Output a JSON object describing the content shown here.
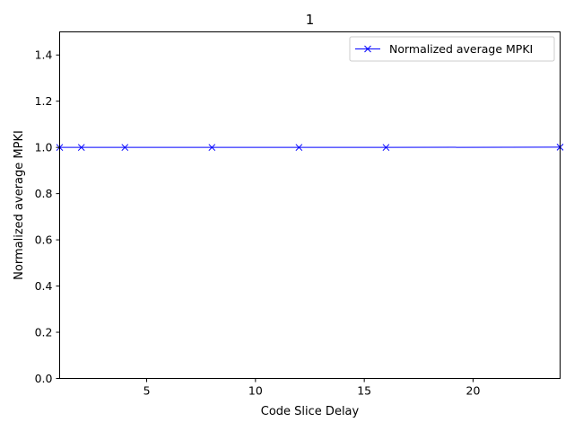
{
  "chart_data": {
    "type": "line",
    "title": "1",
    "xlabel": "Code Slice Delay",
    "ylabel": "Normalized average MPKI",
    "xlim": [
      1,
      24
    ],
    "ylim": [
      0.0,
      1.5
    ],
    "xticks": [
      5,
      10,
      15,
      20
    ],
    "yticks": [
      0.0,
      0.2,
      0.4,
      0.6,
      0.8,
      1.0,
      1.2,
      1.4
    ],
    "ytick_labels": [
      "0.0",
      "0.2",
      "0.4",
      "0.6",
      "0.8",
      "1.0",
      "1.2",
      "1.4"
    ],
    "grid": false,
    "legend_position": "upper right",
    "series": [
      {
        "name": "Normalized average MPKI",
        "color": "#0000ff",
        "marker": "x",
        "x": [
          1,
          2,
          4,
          8,
          12,
          16,
          24
        ],
        "y": [
          1.0,
          1.0,
          1.0,
          1.0,
          1.0,
          1.0,
          1.001
        ]
      }
    ]
  }
}
